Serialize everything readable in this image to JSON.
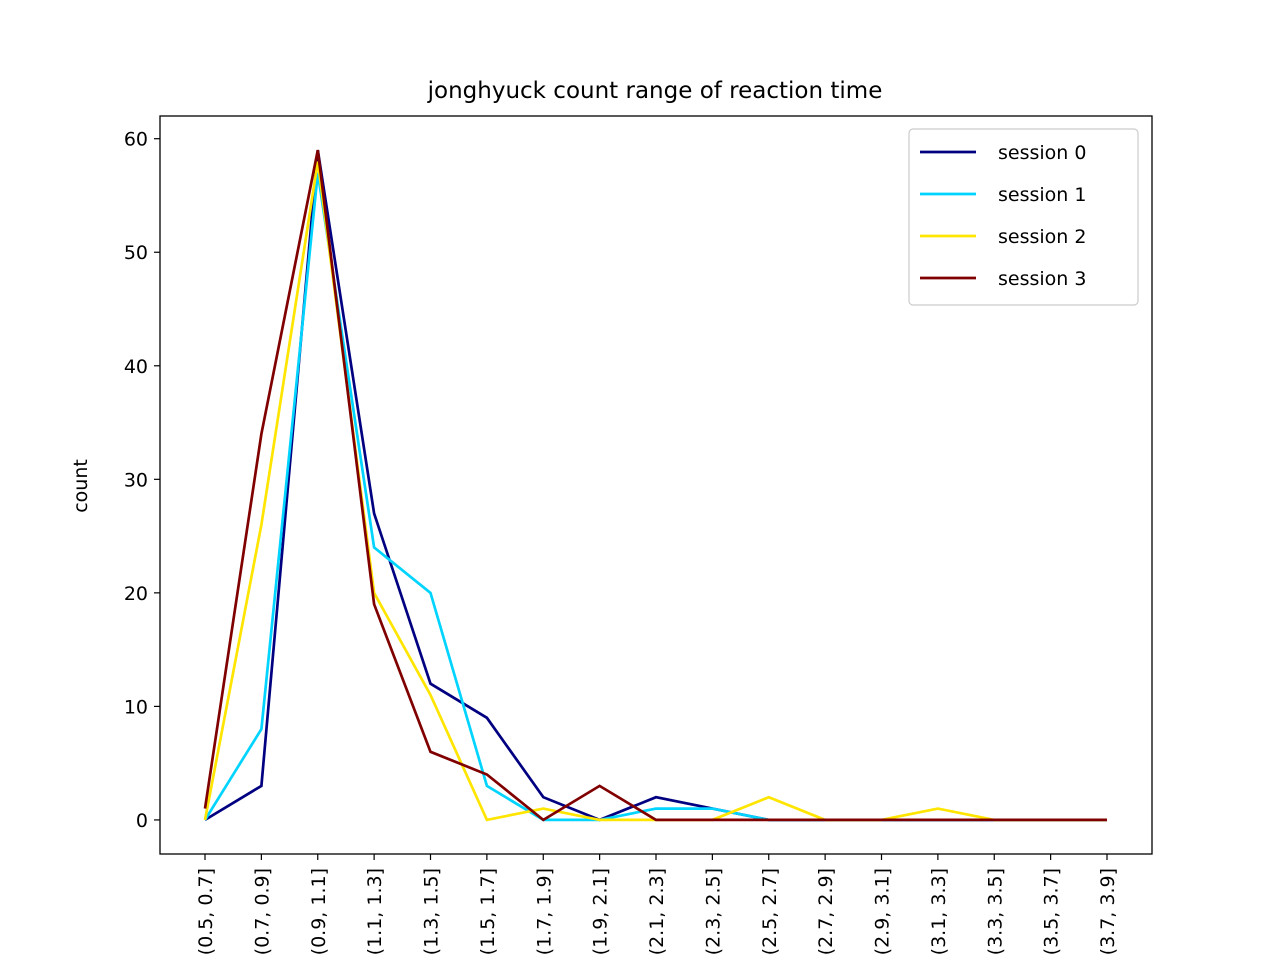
{
  "chart_data": {
    "type": "line",
    "title": "jonghyuck count range of reaction time",
    "xlabel": "",
    "ylabel": "count",
    "ylim": [
      -3,
      62
    ],
    "yticks": [
      0,
      10,
      20,
      30,
      40,
      50,
      60
    ],
    "categories": [
      "(0.5, 0.7]",
      "(0.7, 0.9]",
      "(0.9, 1.1]",
      "(1.1, 1.3]",
      "(1.3, 1.5]",
      "(1.5, 1.7]",
      "(1.7, 1.9]",
      "(1.9, 2.1]",
      "(2.1, 2.3]",
      "(2.3, 2.5]",
      "(2.5, 2.7]",
      "(2.7, 2.9]",
      "(2.9, 3.1]",
      "(3.1, 3.3]",
      "(3.3, 3.5]",
      "(3.5, 3.7]",
      "(3.7, 3.9]"
    ],
    "grid": false,
    "legend_position": "top-right",
    "series": [
      {
        "name": "session 0",
        "color": "#000080",
        "values": [
          0,
          3,
          59,
          27,
          12,
          9,
          2,
          0,
          2,
          1,
          0,
          0,
          0,
          0,
          0,
          0,
          0
        ]
      },
      {
        "name": "session 1",
        "color": "#00d4ff",
        "values": [
          0,
          8,
          57,
          24,
          20,
          3,
          0,
          0,
          1,
          1,
          0,
          0,
          0,
          0,
          0,
          0,
          0
        ]
      },
      {
        "name": "session 2",
        "color": "#ffe500",
        "values": [
          0,
          26,
          58,
          20,
          11,
          0,
          1,
          0,
          0,
          0,
          2,
          0,
          0,
          1,
          0,
          0,
          0
        ]
      },
      {
        "name": "session 3",
        "color": "#800000",
        "values": [
          1,
          34,
          59,
          19,
          6,
          4,
          0,
          3,
          0,
          0,
          0,
          0,
          0,
          0,
          0,
          0,
          0
        ]
      }
    ]
  }
}
